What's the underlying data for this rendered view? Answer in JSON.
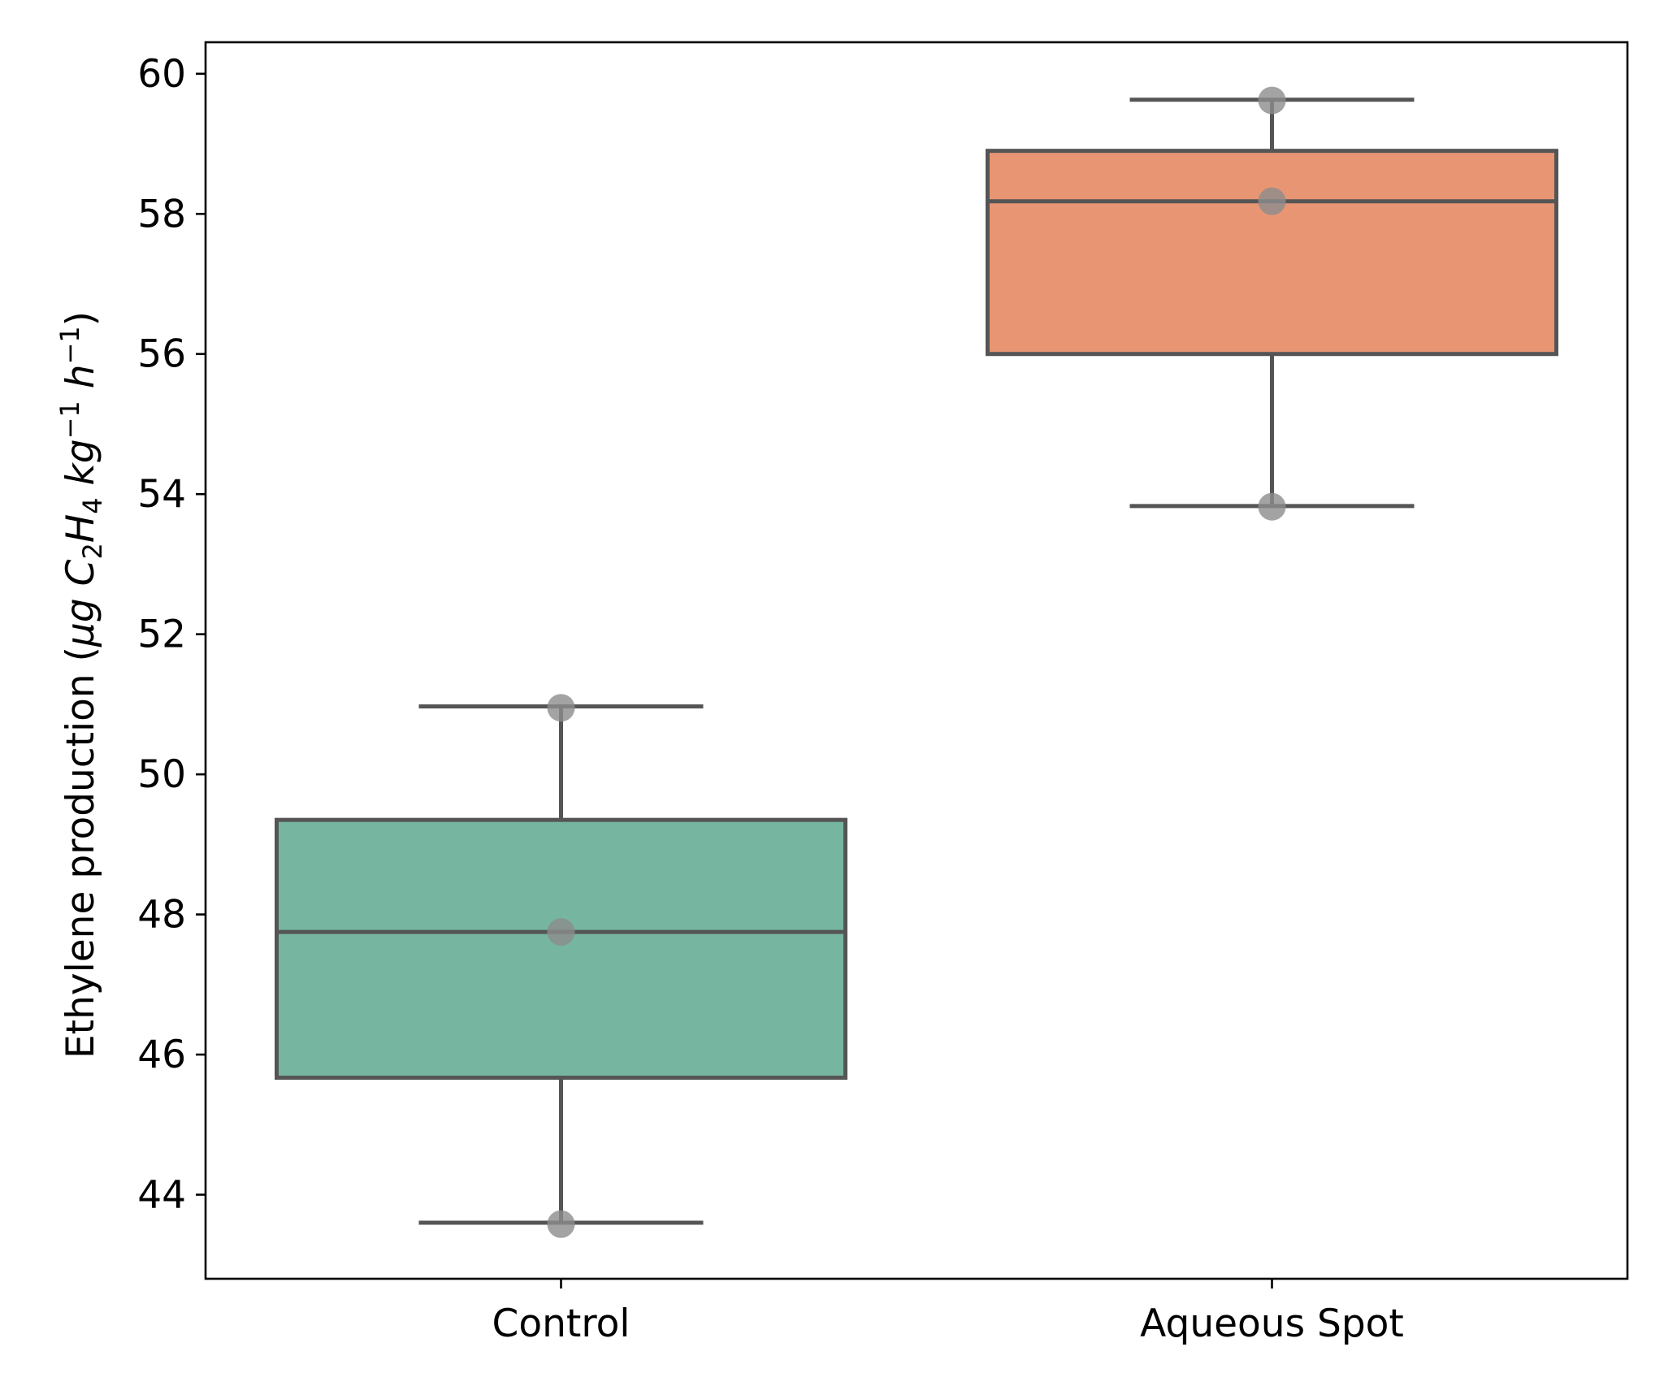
{
  "chart_data": {
    "type": "box",
    "title": "",
    "xlabel": "",
    "ylabel": {
      "prefix": "Ethylene production (",
      "mu": "μg",
      "c": "C",
      "c_sub": "2",
      "h": "H",
      "h_sub": "4",
      "kg": "kg",
      "kg_sup": "−1",
      "hr": "h",
      "hr_sup": "−1",
      "suffix": ")"
    },
    "categories": [
      "Control",
      "Aqueous Spot"
    ],
    "ylim": [
      42.8,
      60.45
    ],
    "yticks": [
      44,
      46,
      48,
      50,
      52,
      54,
      56,
      58,
      60
    ],
    "ytick_labels": [
      "44",
      "46",
      "48",
      "50",
      "52",
      "54",
      "56",
      "58",
      "60"
    ],
    "boxes": [
      {
        "name": "Control",
        "whisker_low": 43.6,
        "q1": 45.67,
        "median": 47.75,
        "q3": 49.35,
        "whisker_high": 50.97,
        "color": "#76b6a1"
      },
      {
        "name": "Aqueous Spot",
        "whisker_low": 53.83,
        "q1": 56.0,
        "median": 58.18,
        "q3": 58.9,
        "whisker_high": 59.63,
        "color": "#e89574"
      }
    ],
    "points": [
      {
        "category": "Control",
        "y": 43.58
      },
      {
        "category": "Control",
        "y": 47.75
      },
      {
        "category": "Control",
        "y": 50.95
      },
      {
        "category": "Aqueous Spot",
        "y": 53.82
      },
      {
        "category": "Aqueous Spot",
        "y": 58.18
      },
      {
        "category": "Aqueous Spot",
        "y": 59.62
      }
    ],
    "grid": false,
    "legend": "none",
    "colors": {
      "line": "#555555",
      "point": "#8c8c8c",
      "axis": "#000000"
    }
  }
}
